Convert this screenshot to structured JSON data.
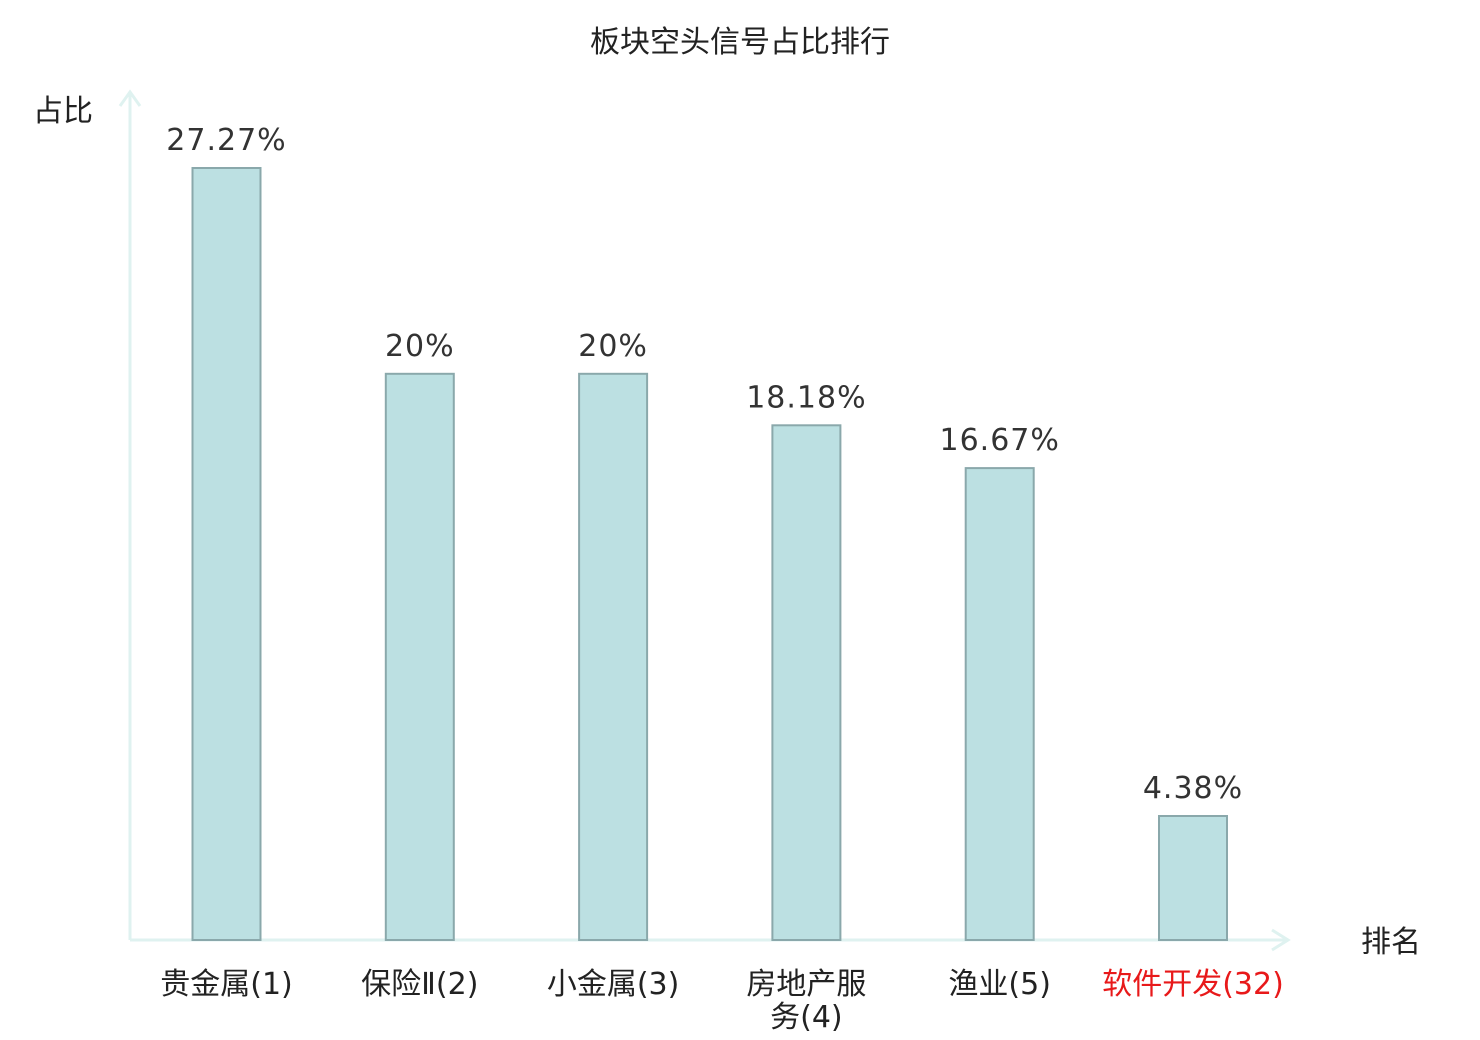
{
  "chart_data": {
    "type": "bar",
    "title": "板块空头信号占比排行",
    "ylabel": "占比",
    "xlabel": "排名",
    "categories": [
      [
        "贵金属(1)"
      ],
      [
        "保险Ⅱ(2)"
      ],
      [
        "小金属(3)"
      ],
      [
        "房地产服",
        "务(4)"
      ],
      [
        "渔业(5)"
      ],
      [
        "软件开发(32)"
      ]
    ],
    "values": [
      27.27,
      20,
      20,
      18.18,
      16.67,
      4.38
    ],
    "value_labels": [
      "27.27%",
      "20%",
      "20%",
      "18.18%",
      "16.67%",
      "4.38%"
    ],
    "highlight_index": 5,
    "ylim": [
      0,
      30
    ],
    "grid": false,
    "colors": {
      "bar_fill": "#bce0e2",
      "bar_stroke": "#8aa8ab",
      "axis": "#dff2f0",
      "text": "#222222",
      "highlight": "#e8191a"
    }
  }
}
